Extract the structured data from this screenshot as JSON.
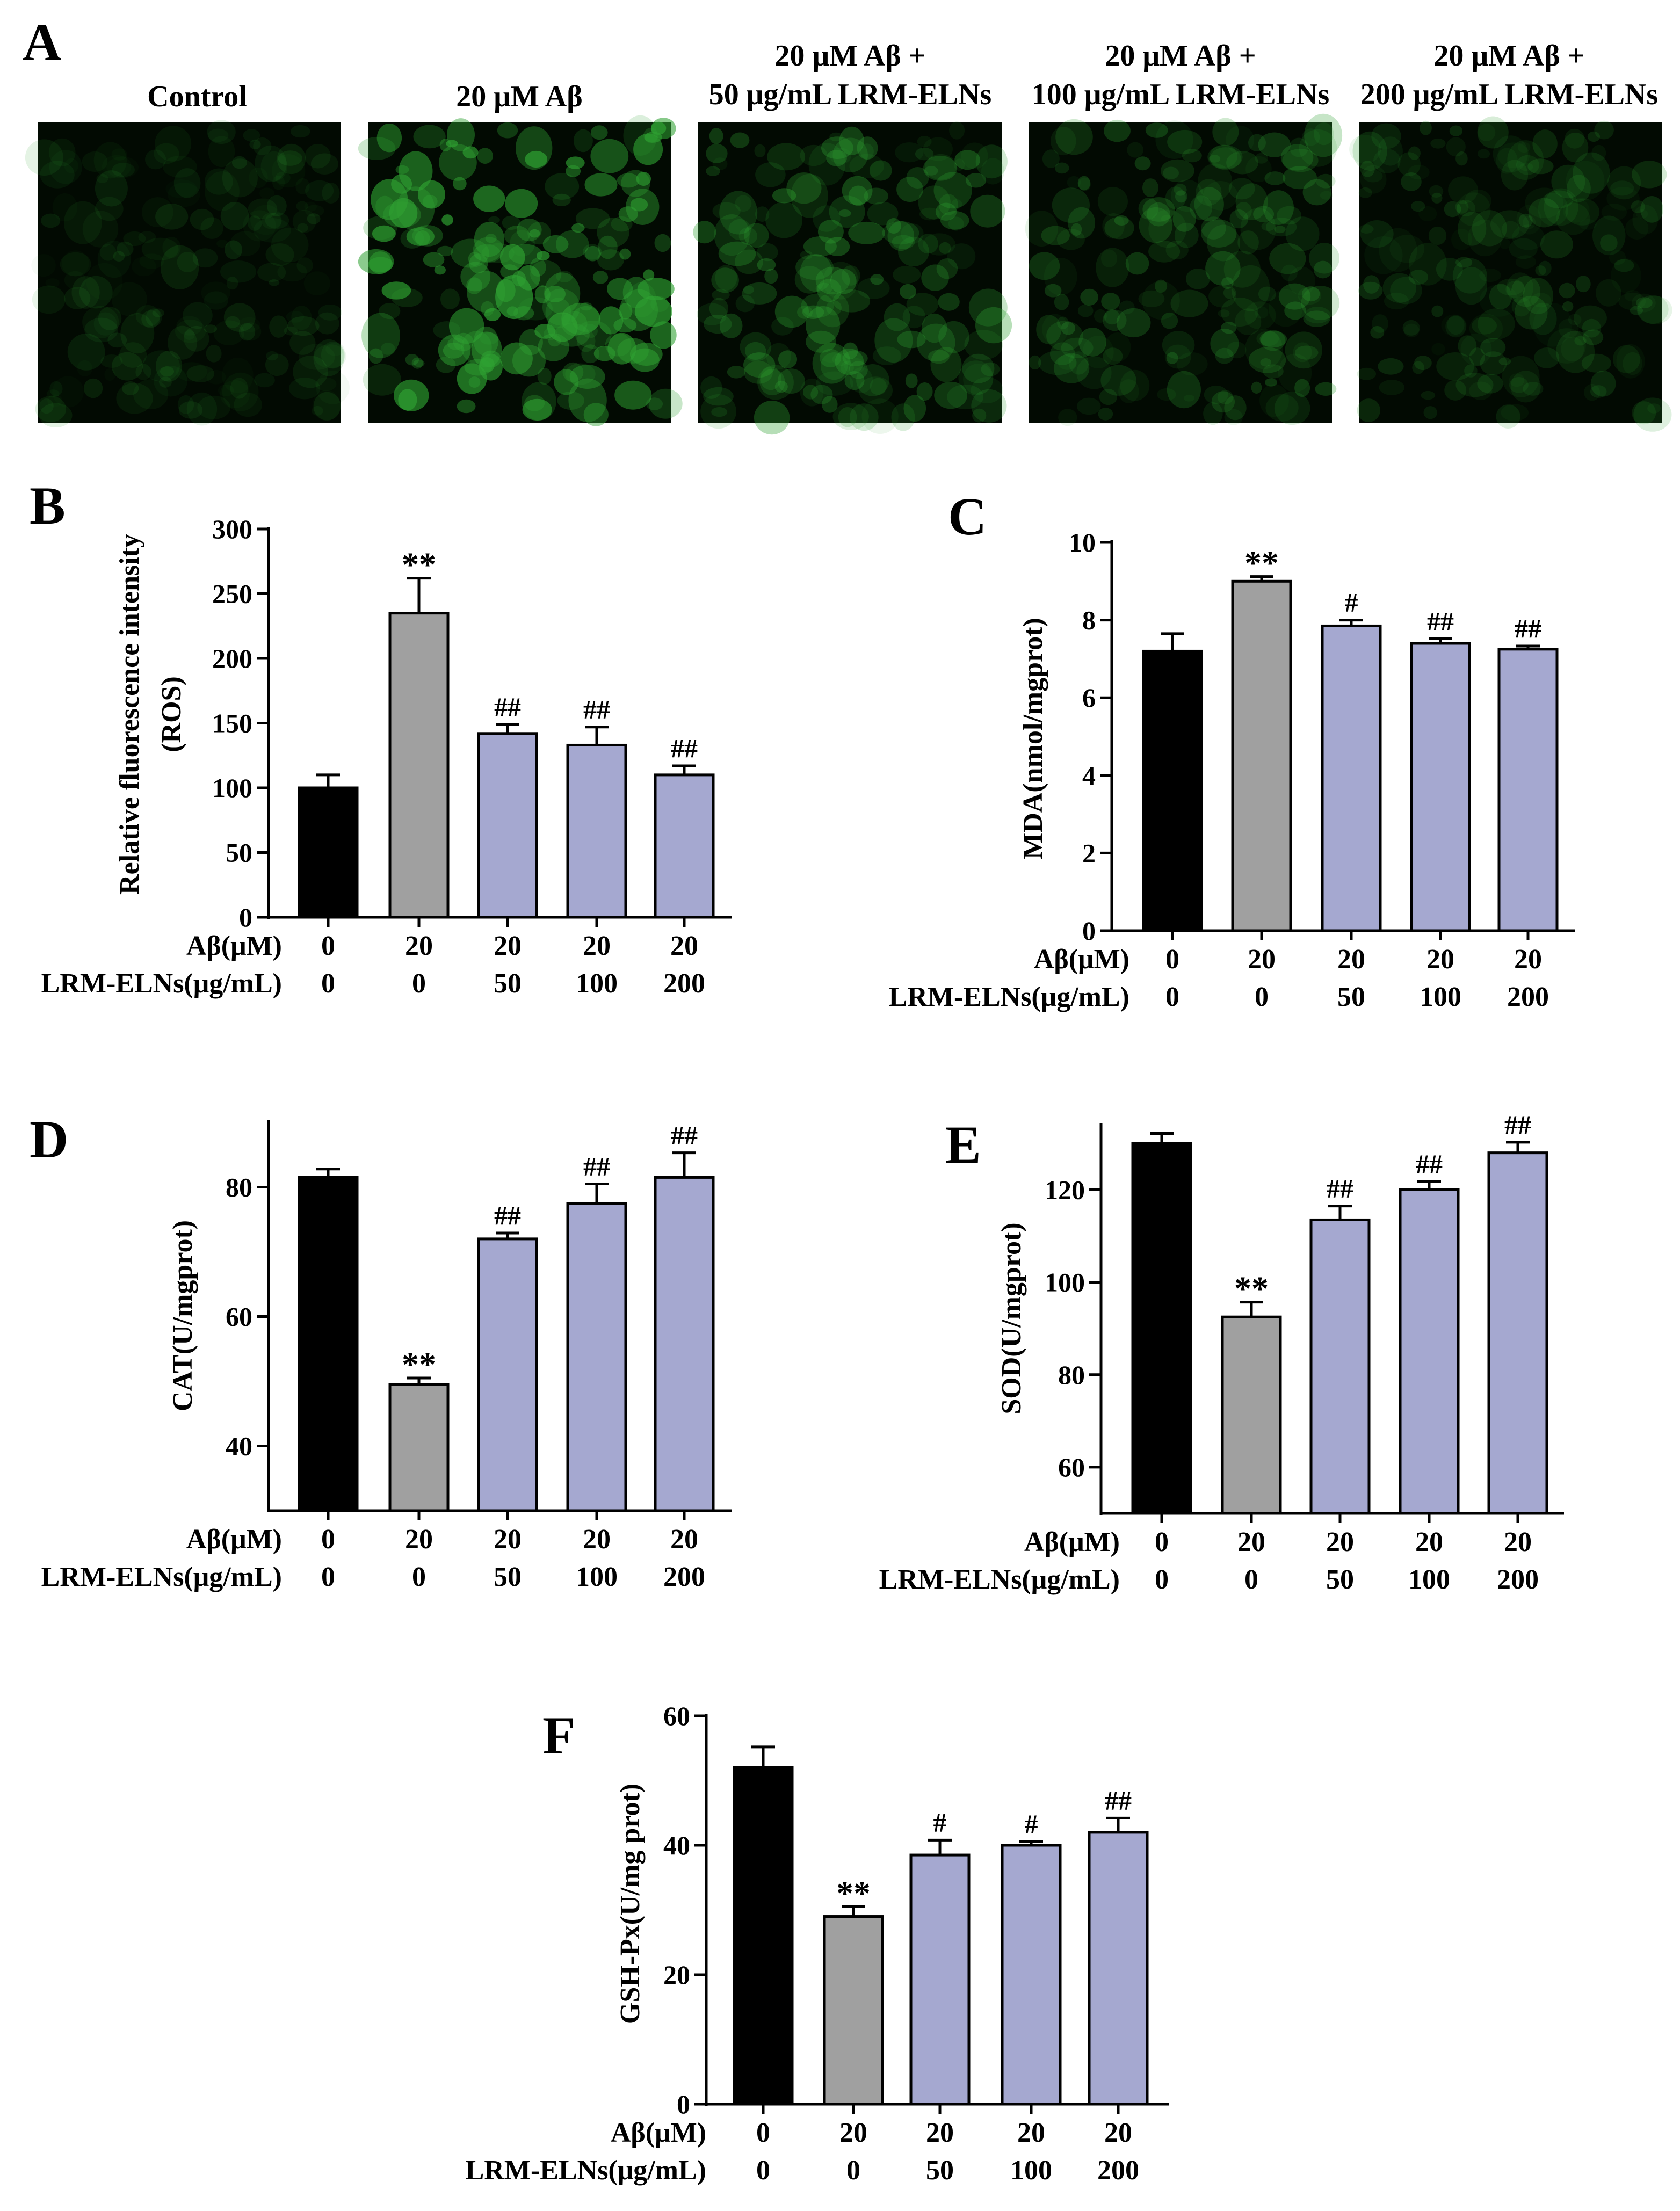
{
  "colors": {
    "control": "#000000",
    "abeta": "#a0a0a0",
    "treated": "#a5a8d0",
    "fluorescence": "#2fa232"
  },
  "panel_a": {
    "letter": "A",
    "images": [
      {
        "title_lines": [
          "Control"
        ],
        "intensity": 0.22
      },
      {
        "title_lines": [
          "20 μM Aβ"
        ],
        "intensity": 1.0
      },
      {
        "title_lines": [
          "20 μM Aβ +",
          "50 μg/mL LRM-ELNs"
        ],
        "intensity": 0.55
      },
      {
        "title_lines": [
          "20 μM Aβ +",
          "100 μg/mL LRM-ELNs"
        ],
        "intensity": 0.42
      },
      {
        "title_lines": [
          "20 μM Aβ +",
          "200 μg/mL LRM-ELNs"
        ],
        "intensity": 0.3
      }
    ]
  },
  "chart_data": [
    {
      "panel": "B",
      "type": "bar",
      "ylabel": [
        "Relative fluorescence intensity",
        "(ROS)"
      ],
      "ylim": [
        0,
        300
      ],
      "yticks": [
        0,
        50,
        100,
        150,
        200,
        250,
        300
      ],
      "row_labels": [
        "Aβ(μM)",
        "LRM-ELNs(μg/mL)"
      ],
      "abeta": [
        "0",
        "20",
        "20",
        "20",
        "20"
      ],
      "elns": [
        "0",
        "0",
        "50",
        "100",
        "200"
      ],
      "values": [
        100,
        235,
        142,
        133,
        110
      ],
      "errors": [
        10,
        27,
        7,
        14,
        7
      ],
      "annotations": [
        "",
        "**",
        "##",
        "##",
        "##"
      ]
    },
    {
      "panel": "C",
      "type": "bar",
      "ylabel": [
        "MDA(nmol/mgprot)"
      ],
      "ylim": [
        0,
        10
      ],
      "yticks": [
        0,
        2,
        4,
        6,
        8,
        10
      ],
      "row_labels": [
        "Aβ(μM)",
        "LRM-ELNs(μg/mL)"
      ],
      "abeta": [
        "0",
        "20",
        "20",
        "20",
        "20"
      ],
      "elns": [
        "0",
        "0",
        "50",
        "100",
        "200"
      ],
      "values": [
        7.2,
        9.0,
        7.85,
        7.4,
        7.25
      ],
      "errors": [
        0.45,
        0.12,
        0.15,
        0.12,
        0.08
      ],
      "annotations": [
        "",
        "**",
        "#",
        "##",
        "##"
      ]
    },
    {
      "panel": "D",
      "type": "bar",
      "ylabel": [
        "CAT(U/mgprot)"
      ],
      "ylim": [
        30,
        90
      ],
      "yticks": [
        40,
        60,
        80
      ],
      "row_labels": [
        "Aβ(μM)",
        "LRM-ELNs(μg/mL)"
      ],
      "abeta": [
        "0",
        "20",
        "20",
        "20",
        "20"
      ],
      "elns": [
        "0",
        "0",
        "50",
        "100",
        "200"
      ],
      "values": [
        81.5,
        49.5,
        72,
        77.5,
        81.5
      ],
      "errors": [
        1.3,
        1.0,
        0.9,
        3.0,
        3.8
      ],
      "annotations": [
        "",
        "**",
        "##",
        "##",
        "##"
      ]
    },
    {
      "panel": "E",
      "type": "bar",
      "ylabel": [
        "SOD(U/mgprot)"
      ],
      "ylim": [
        50,
        134
      ],
      "yticks": [
        60,
        80,
        100,
        120
      ],
      "row_labels": [
        "Aβ(μM)",
        "LRM-ELNs(μg/mL)"
      ],
      "abeta": [
        "0",
        "20",
        "20",
        "20",
        "20"
      ],
      "elns": [
        "0",
        "0",
        "50",
        "100",
        "200"
      ],
      "values": [
        130,
        92.5,
        113.5,
        120,
        128
      ],
      "errors": [
        2.2,
        3.2,
        3.0,
        1.8,
        2.3
      ],
      "annotations": [
        "",
        "**",
        "##",
        "##",
        "##"
      ]
    },
    {
      "panel": "F",
      "type": "bar",
      "ylabel": [
        "GSH-Px(U/mg prot)"
      ],
      "ylim": [
        0,
        60
      ],
      "yticks": [
        0,
        20,
        40,
        60
      ],
      "row_labels": [
        "Aβ(μM)",
        "LRM-ELNs(μg/mL)"
      ],
      "abeta": [
        "0",
        "20",
        "20",
        "20",
        "20"
      ],
      "elns": [
        "0",
        "0",
        "50",
        "100",
        "200"
      ],
      "values": [
        52,
        29,
        38.5,
        40,
        42
      ],
      "errors": [
        3.2,
        1.5,
        2.3,
        0.6,
        2.2
      ],
      "annotations": [
        "",
        "**",
        "#",
        "#",
        "##"
      ]
    }
  ]
}
